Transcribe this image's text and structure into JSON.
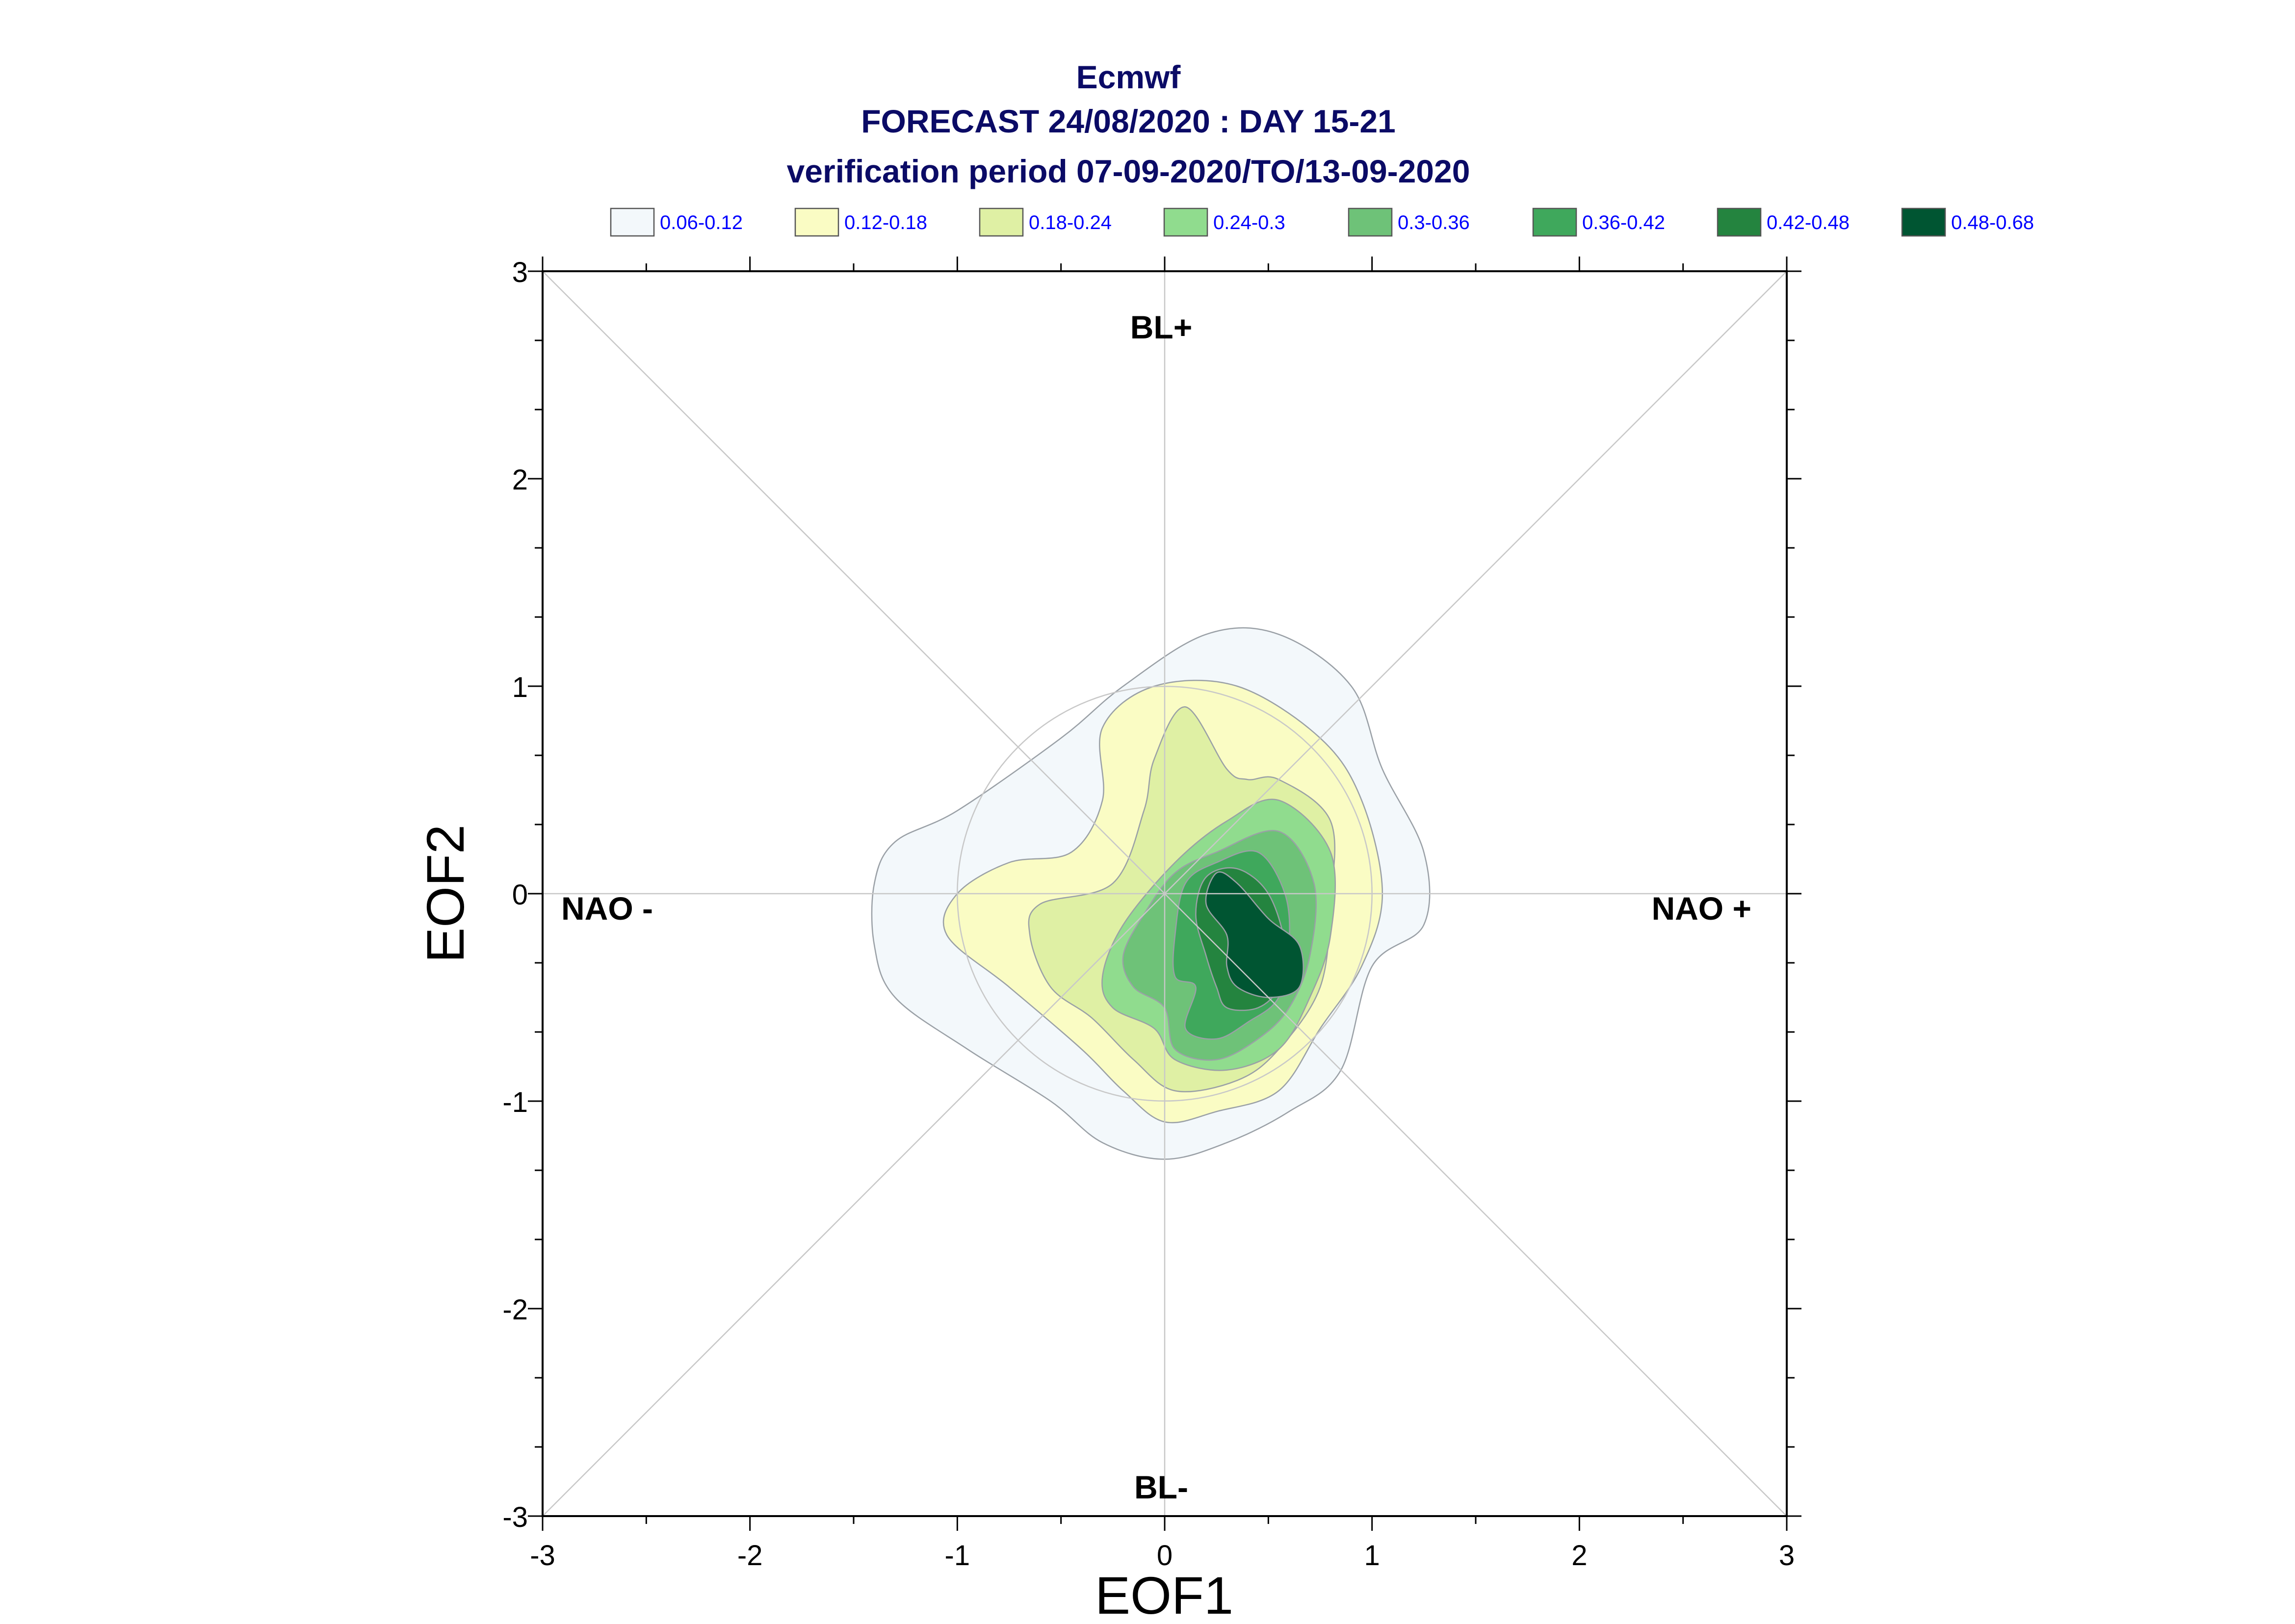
{
  "chart_data": {
    "type": "contour",
    "title_lines": [
      "Ecmwf",
      "FORECAST 24/08/2020 : DAY 15-21",
      "verification period 07-09-2020/TO/13-09-2020"
    ],
    "xlabel": "EOF1",
    "ylabel": "EOF2",
    "xlim": [
      -3,
      3
    ],
    "ylim": [
      -3,
      3
    ],
    "xticks": [
      "-3",
      "-2",
      "-1",
      "0",
      "1",
      "2",
      "3"
    ],
    "yticks": [
      "-3",
      "-2",
      "-1",
      "0",
      "1",
      "2",
      "3"
    ],
    "grid": "crosshair and diagonals through origin",
    "regime_labels": {
      "top": "BL+",
      "bottom": "BL-",
      "left": "NAO -",
      "right": "NAO +"
    },
    "legend_position": "top",
    "levels": [
      {
        "label": "0.06-0.12",
        "color": "#f3f8fb",
        "contour": [
          [
            -1.4,
            0.05
          ],
          [
            -1.3,
            0.25
          ],
          [
            -1.0,
            0.4
          ],
          [
            -0.5,
            0.75
          ],
          [
            -0.2,
            1.0
          ],
          [
            0.2,
            1.25
          ],
          [
            0.55,
            1.25
          ],
          [
            0.9,
            1.0
          ],
          [
            1.05,
            0.6
          ],
          [
            1.25,
            0.2
          ],
          [
            1.25,
            -0.15
          ],
          [
            1.0,
            -0.35
          ],
          [
            0.85,
            -0.85
          ],
          [
            0.6,
            -1.05
          ],
          [
            0.3,
            -1.2
          ],
          [
            0.0,
            -1.28
          ],
          [
            -0.3,
            -1.2
          ],
          [
            -0.55,
            -1.0
          ],
          [
            -0.95,
            -0.75
          ],
          [
            -1.3,
            -0.5
          ],
          [
            -1.4,
            -0.25
          ]
        ]
      },
      {
        "label": "0.12-0.18",
        "color": "#fafcc4",
        "contour": [
          [
            -1.05,
            -0.2
          ],
          [
            -1.0,
            0.0
          ],
          [
            -0.75,
            0.15
          ],
          [
            -0.45,
            0.2
          ],
          [
            -0.3,
            0.45
          ],
          [
            -0.3,
            0.8
          ],
          [
            -0.05,
            1.0
          ],
          [
            0.35,
            1.0
          ],
          [
            0.75,
            0.75
          ],
          [
            0.95,
            0.45
          ],
          [
            1.05,
            0.0
          ],
          [
            0.95,
            -0.35
          ],
          [
            0.75,
            -0.65
          ],
          [
            0.55,
            -0.95
          ],
          [
            0.25,
            -1.05
          ],
          [
            0.0,
            -1.1
          ],
          [
            -0.2,
            -0.95
          ],
          [
            -0.4,
            -0.75
          ],
          [
            -0.75,
            -0.45
          ]
        ]
      },
      {
        "label": "0.18-0.24",
        "color": "#dff0a4",
        "contour": [
          [
            -0.65,
            -0.2
          ],
          [
            -0.6,
            -0.05
          ],
          [
            -0.25,
            0.05
          ],
          [
            -0.1,
            0.4
          ],
          [
            -0.05,
            0.65
          ],
          [
            0.1,
            0.9
          ],
          [
            0.3,
            0.6
          ],
          [
            0.4,
            0.55
          ],
          [
            0.55,
            0.55
          ],
          [
            0.8,
            0.35
          ],
          [
            0.8,
            -0.05
          ],
          [
            0.75,
            -0.45
          ],
          [
            0.55,
            -0.75
          ],
          [
            0.35,
            -0.9
          ],
          [
            0.05,
            -0.95
          ],
          [
            -0.15,
            -0.8
          ],
          [
            -0.35,
            -0.6
          ],
          [
            -0.55,
            -0.45
          ]
        ]
      },
      {
        "label": "0.24-0.3",
        "color": "#90dc8e",
        "contour": [
          [
            -0.3,
            -0.4
          ],
          [
            -0.2,
            -0.15
          ],
          [
            0.05,
            0.15
          ],
          [
            0.3,
            0.35
          ],
          [
            0.55,
            0.45
          ],
          [
            0.8,
            0.2
          ],
          [
            0.8,
            -0.2
          ],
          [
            0.7,
            -0.5
          ],
          [
            0.55,
            -0.75
          ],
          [
            0.3,
            -0.85
          ],
          [
            0.05,
            -0.8
          ],
          [
            -0.05,
            -0.65
          ],
          [
            -0.25,
            -0.55
          ]
        ]
      },
      {
        "label": "0.3-0.36",
        "color": "#6ec278",
        "contour": [
          [
            -0.2,
            -0.3
          ],
          [
            -0.1,
            -0.1
          ],
          [
            0.05,
            0.1
          ],
          [
            0.25,
            0.2
          ],
          [
            0.55,
            0.3
          ],
          [
            0.72,
            0.05
          ],
          [
            0.7,
            -0.3
          ],
          [
            0.6,
            -0.55
          ],
          [
            0.45,
            -0.7
          ],
          [
            0.25,
            -0.8
          ],
          [
            0.05,
            -0.75
          ],
          [
            0.0,
            -0.55
          ],
          [
            -0.15,
            -0.45
          ]
        ]
      },
      {
        "label": "0.36-0.42",
        "color": "#3fa85c",
        "contour": [
          [
            0.05,
            -0.2
          ],
          [
            0.1,
            0.05
          ],
          [
            0.25,
            0.15
          ],
          [
            0.45,
            0.2
          ],
          [
            0.58,
            0.0
          ],
          [
            0.6,
            -0.25
          ],
          [
            0.55,
            -0.5
          ],
          [
            0.4,
            -0.62
          ],
          [
            0.25,
            -0.7
          ],
          [
            0.1,
            -0.65
          ],
          [
            0.15,
            -0.45
          ],
          [
            0.05,
            -0.4
          ]
        ]
      },
      {
        "label": "0.42-0.48",
        "color": "#24843f",
        "contour": [
          [
            0.15,
            -0.1
          ],
          [
            0.2,
            0.08
          ],
          [
            0.35,
            0.12
          ],
          [
            0.5,
            0.0
          ],
          [
            0.58,
            -0.25
          ],
          [
            0.55,
            -0.45
          ],
          [
            0.45,
            -0.55
          ],
          [
            0.3,
            -0.55
          ],
          [
            0.25,
            -0.45
          ],
          [
            0.2,
            -0.3
          ]
        ]
      },
      {
        "label": "0.48-0.68",
        "color": "#005532",
        "contour": [
          [
            0.2,
            -0.05
          ],
          [
            0.25,
            0.1
          ],
          [
            0.35,
            0.05
          ],
          [
            0.5,
            -0.12
          ],
          [
            0.65,
            -0.25
          ],
          [
            0.65,
            -0.45
          ],
          [
            0.5,
            -0.5
          ],
          [
            0.35,
            -0.45
          ],
          [
            0.3,
            -0.35
          ],
          [
            0.3,
            -0.2
          ]
        ]
      }
    ]
  }
}
